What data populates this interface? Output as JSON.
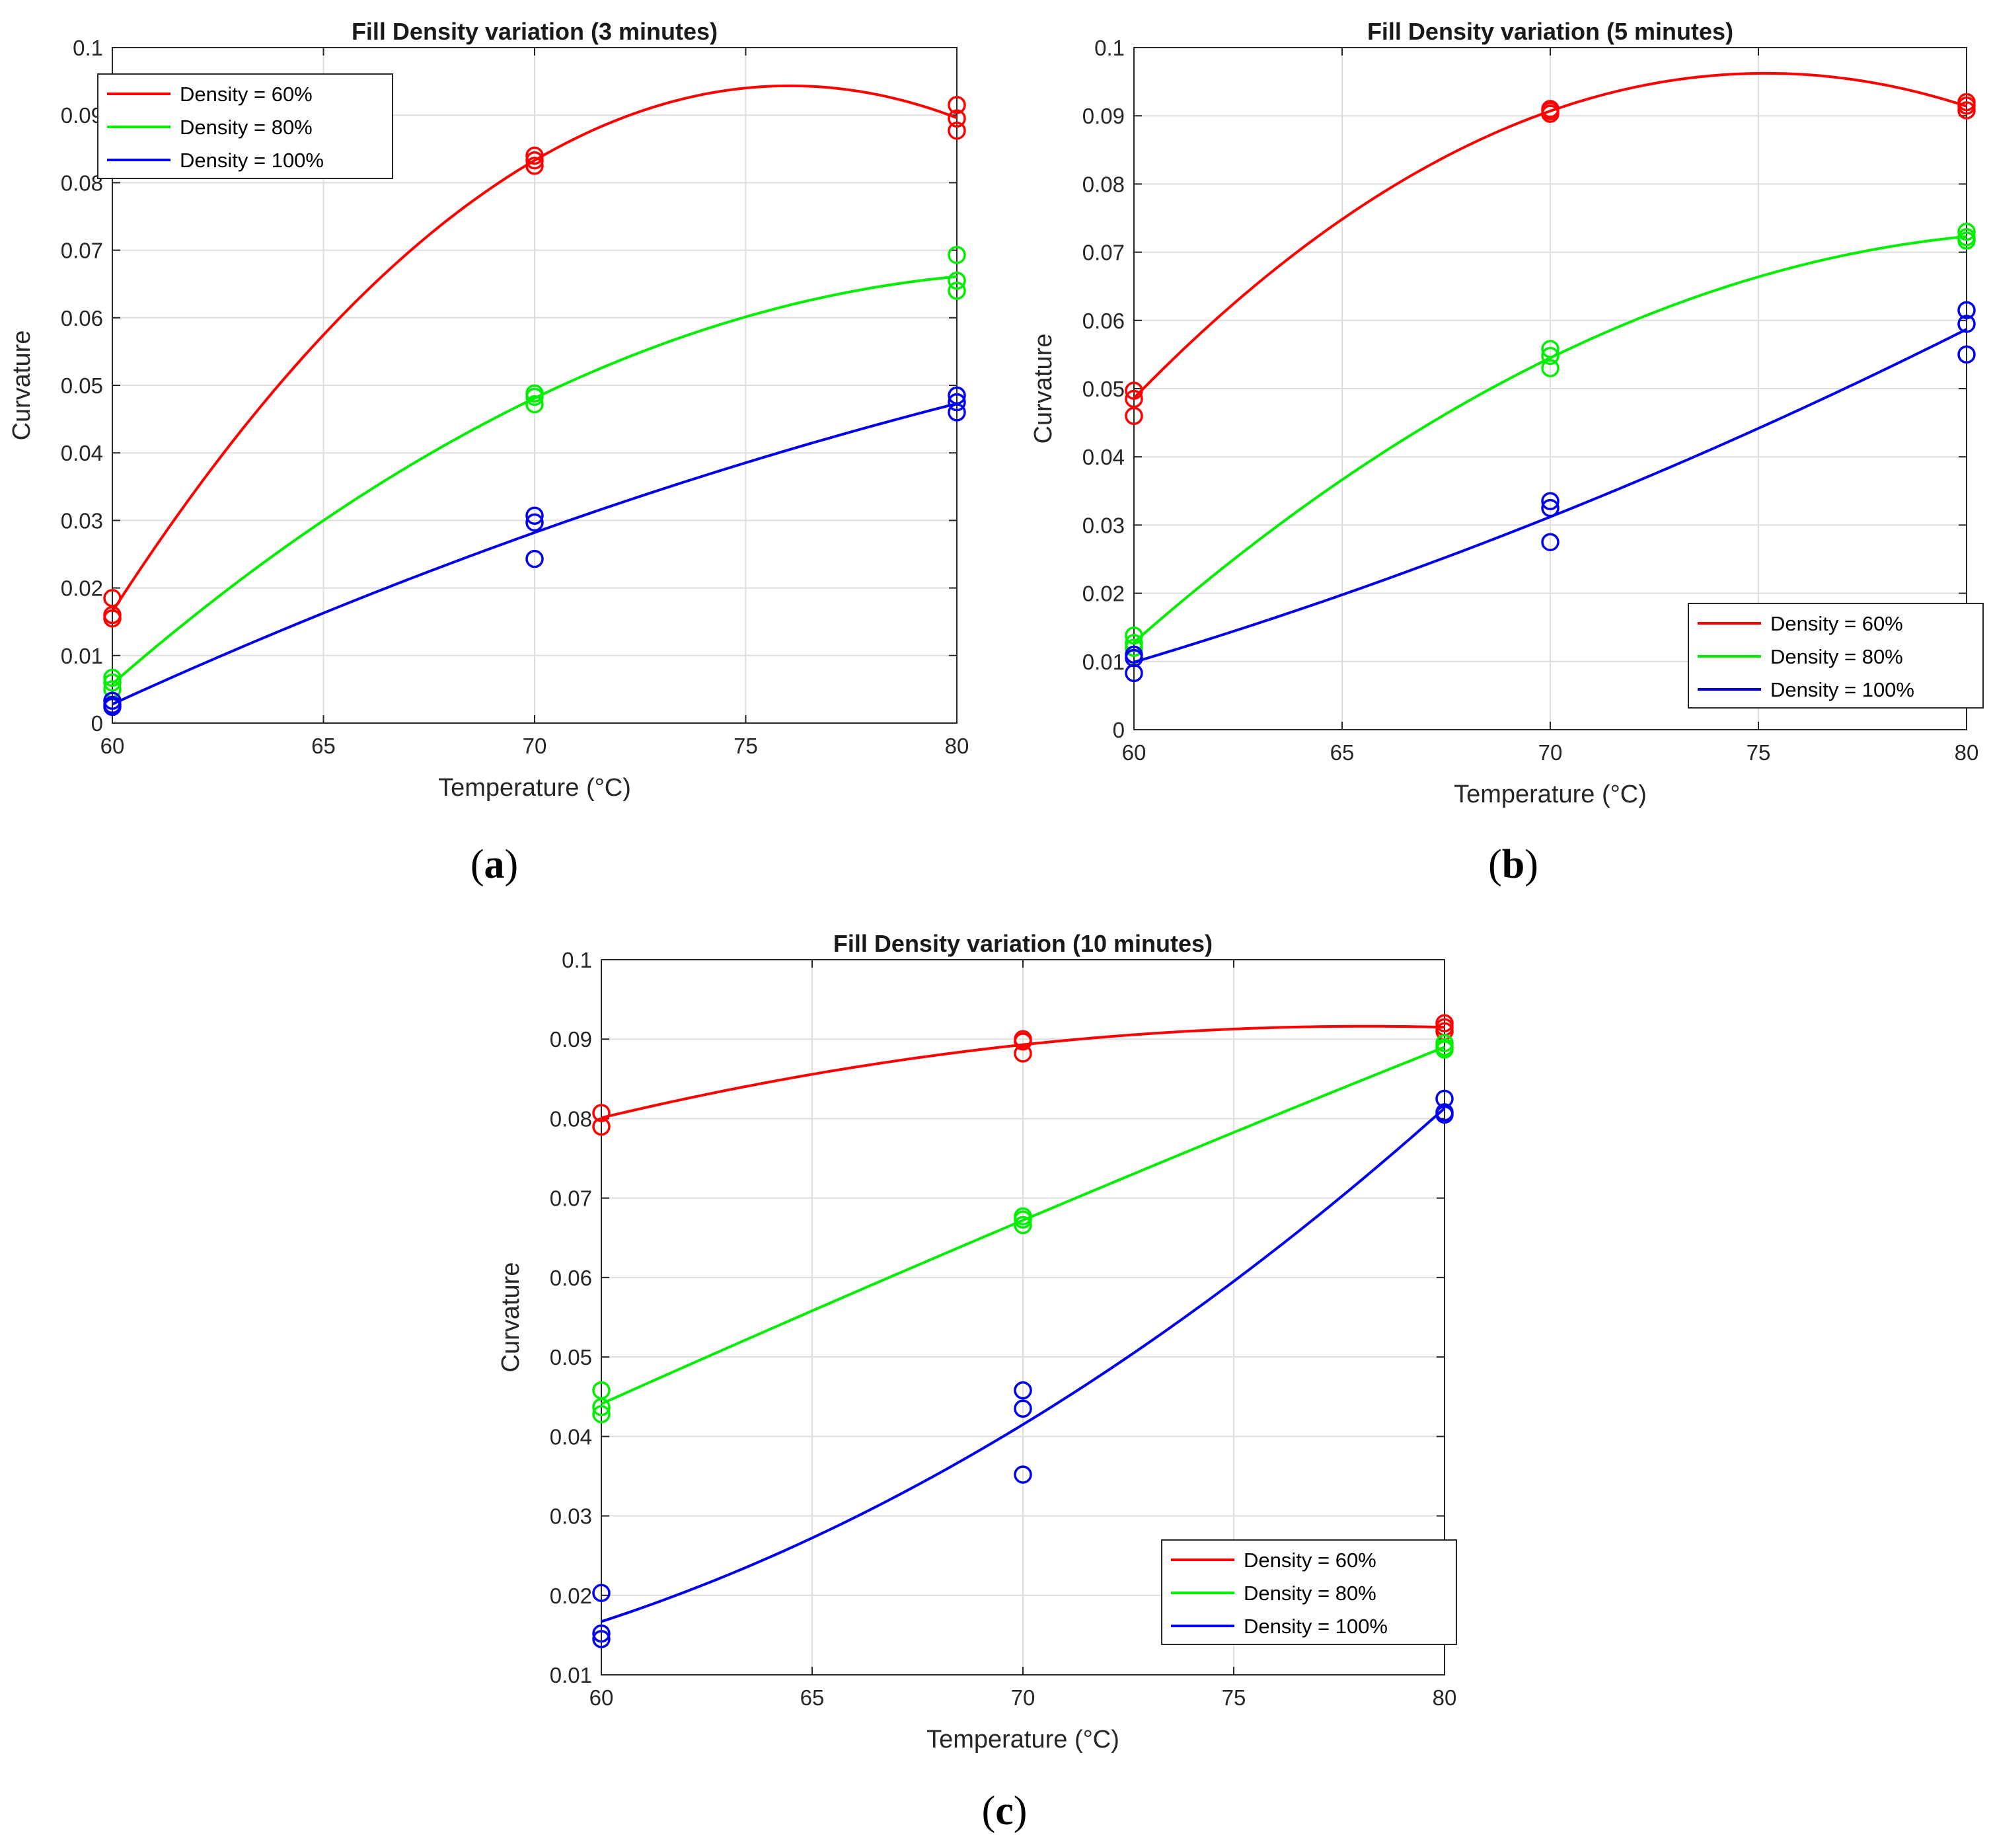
{
  "figure": {
    "panel_labels": [
      "a",
      "b",
      "c"
    ]
  },
  "chart_data": [
    {
      "type": "scatter",
      "title": "Fill Density variation (3 minutes)",
      "xlabel": "Temperature (°C)",
      "ylabel": "Curvature",
      "xlim": [
        60,
        80
      ],
      "ylim": [
        0,
        0.1
      ],
      "xticks": [
        60,
        65,
        70,
        75,
        80
      ],
      "yticks": [
        0,
        0.01,
        0.02,
        0.03,
        0.04,
        0.05,
        0.06,
        0.07,
        0.08,
        0.09,
        0.1
      ],
      "grid": true,
      "legend_position": "top-left",
      "series": [
        {
          "name": "Density = 60%",
          "color": "#ff0000",
          "points": [
            [
              60,
              0.0185
            ],
            [
              60,
              0.016
            ],
            [
              60,
              0.0155
            ],
            [
              70,
              0.084
            ],
            [
              70,
              0.0833
            ],
            [
              70,
              0.0825
            ],
            [
              80,
              0.0915
            ],
            [
              80,
              0.0895
            ],
            [
              80,
              0.0877
            ]
          ],
          "fit": [
            [
              60,
              0.0165
            ],
            [
              70,
              0.0833
            ],
            [
              80,
              0.0896
            ]
          ]
        },
        {
          "name": "Density = 80%",
          "color": "#00ee00",
          "points": [
            [
              60,
              0.0067
            ],
            [
              60,
              0.006
            ],
            [
              60,
              0.005
            ],
            [
              70,
              0.0488
            ],
            [
              70,
              0.0483
            ],
            [
              70,
              0.0472
            ],
            [
              80,
              0.0693
            ],
            [
              80,
              0.0655
            ],
            [
              80,
              0.064
            ]
          ],
          "fit": [
            [
              60,
              0.0058
            ],
            [
              70,
              0.0481
            ],
            [
              80,
              0.0661
            ]
          ]
        },
        {
          "name": "Density = 100%",
          "color": "#0000ee",
          "points": [
            [
              60,
              0.0033
            ],
            [
              60,
              0.0027
            ],
            [
              60,
              0.0024
            ],
            [
              70,
              0.0307
            ],
            [
              70,
              0.0297
            ],
            [
              70,
              0.0243
            ],
            [
              80,
              0.0485
            ],
            [
              80,
              0.0475
            ],
            [
              80,
              0.046
            ]
          ],
          "fit": [
            [
              60,
              0.0028
            ],
            [
              70,
              0.0282
            ],
            [
              80,
              0.0473
            ]
          ]
        }
      ]
    },
    {
      "type": "scatter",
      "title": "Fill Density variation (5 minutes)",
      "xlabel": "Temperature (°C)",
      "ylabel": "Curvature",
      "xlim": [
        60,
        80
      ],
      "ylim": [
        0,
        0.1
      ],
      "xticks": [
        60,
        65,
        70,
        75,
        80
      ],
      "yticks": [
        0,
        0.01,
        0.02,
        0.03,
        0.04,
        0.05,
        0.06,
        0.07,
        0.08,
        0.09,
        0.1
      ],
      "grid": true,
      "legend_position": "bottom-right",
      "series": [
        {
          "name": "Density = 60%",
          "color": "#ff0000",
          "points": [
            [
              60,
              0.0497
            ],
            [
              60,
              0.0485
            ],
            [
              60,
              0.046
            ],
            [
              70,
              0.091
            ],
            [
              70,
              0.0907
            ],
            [
              70,
              0.0903
            ],
            [
              80,
              0.092
            ],
            [
              80,
              0.0915
            ],
            [
              80,
              0.0908
            ]
          ],
          "fit": [
            [
              60,
              0.0486
            ],
            [
              70,
              0.0907
            ],
            [
              80,
              0.0914
            ]
          ]
        },
        {
          "name": "Density = 80%",
          "color": "#00ee00",
          "points": [
            [
              60,
              0.0138
            ],
            [
              60,
              0.0127
            ],
            [
              60,
              0.012
            ],
            [
              70,
              0.0558
            ],
            [
              70,
              0.0548
            ],
            [
              70,
              0.053
            ],
            [
              80,
              0.073
            ],
            [
              80,
              0.0722
            ],
            [
              80,
              0.0717
            ]
          ],
          "fit": [
            [
              60,
              0.0128
            ],
            [
              70,
              0.0545
            ],
            [
              80,
              0.0723
            ]
          ]
        },
        {
          "name": "Density = 100%",
          "color": "#0000ee",
          "points": [
            [
              60,
              0.011
            ],
            [
              60,
              0.0105
            ],
            [
              60,
              0.0083
            ],
            [
              70,
              0.0335
            ],
            [
              70,
              0.0325
            ],
            [
              70,
              0.0275
            ],
            [
              80,
              0.0615
            ],
            [
              80,
              0.0595
            ],
            [
              80,
              0.055
            ]
          ],
          "fit": [
            [
              60,
              0.0099
            ],
            [
              70,
              0.0312
            ],
            [
              80,
              0.0587
            ]
          ]
        }
      ]
    },
    {
      "type": "scatter",
      "title": "Fill Density variation (10 minutes)",
      "xlabel": "Temperature (°C)",
      "ylabel": "Curvature",
      "xlim": [
        60,
        80
      ],
      "ylim": [
        0.01,
        0.1
      ],
      "xticks": [
        60,
        65,
        70,
        75,
        80
      ],
      "yticks": [
        0.01,
        0.02,
        0.03,
        0.04,
        0.05,
        0.06,
        0.07,
        0.08,
        0.09,
        0.1
      ],
      "grid": true,
      "legend_position": "bottom-right",
      "series": [
        {
          "name": "Density = 60%",
          "color": "#ff0000",
          "points": [
            [
              60,
              0.0807
            ],
            [
              60,
              0.079
            ],
            [
              70,
              0.09
            ],
            [
              70,
              0.0897
            ],
            [
              70,
              0.0882
            ],
            [
              80,
              0.092
            ],
            [
              80,
              0.0915
            ],
            [
              80,
              0.091
            ]
          ],
          "fit": [
            [
              60,
              0.0801
            ],
            [
              70,
              0.0893
            ],
            [
              80,
              0.0915
            ]
          ]
        },
        {
          "name": "Density = 80%",
          "color": "#00ee00",
          "points": [
            [
              60,
              0.0458
            ],
            [
              60,
              0.0437
            ],
            [
              60,
              0.0428
            ],
            [
              70,
              0.0677
            ],
            [
              70,
              0.0673
            ],
            [
              70,
              0.0666
            ],
            [
              80,
              0.0895
            ],
            [
              80,
              0.089
            ],
            [
              80,
              0.0887
            ]
          ],
          "fit": [
            [
              60,
              0.0441
            ],
            [
              70,
              0.0672
            ],
            [
              80,
              0.089
            ]
          ]
        },
        {
          "name": "Density = 100%",
          "color": "#0000ee",
          "points": [
            [
              60,
              0.0203
            ],
            [
              60,
              0.0152
            ],
            [
              60,
              0.0145
            ],
            [
              70,
              0.0458
            ],
            [
              70,
              0.0435
            ],
            [
              70,
              0.0352
            ],
            [
              80,
              0.0825
            ],
            [
              80,
              0.0808
            ],
            [
              80,
              0.0805
            ]
          ],
          "fit": [
            [
              60,
              0.0167
            ],
            [
              70,
              0.0415
            ],
            [
              80,
              0.0813
            ]
          ]
        }
      ]
    }
  ]
}
